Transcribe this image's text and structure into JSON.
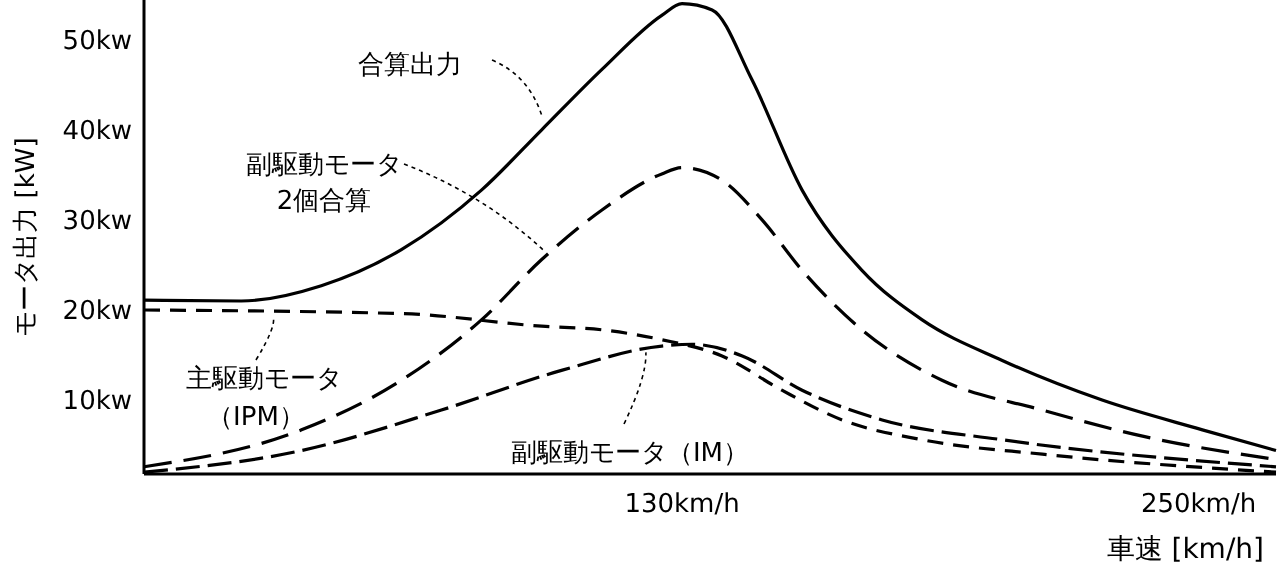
{
  "chart_data": {
    "type": "line",
    "xlabel": "車速 [km/h]",
    "ylabel": "モータ出力 [kW]",
    "xlim": [
      5,
      268
    ],
    "ylim": [
      1.8,
      54.4
    ],
    "xticks": [
      {
        "value": 130,
        "label": "130km/h"
      },
      {
        "value": 250,
        "label": "250km/h"
      }
    ],
    "yticks": [
      {
        "value": 10,
        "label": "10kw"
      },
      {
        "value": 20,
        "label": "20kw"
      },
      {
        "value": 30,
        "label": "30kw"
      },
      {
        "value": 40,
        "label": "40kw"
      },
      {
        "value": 50,
        "label": "50kw"
      }
    ],
    "grid": false,
    "marker": "none",
    "annotations": [
      {
        "text": "合算出力",
        "x": 97.4,
        "y": 41.6
      },
      {
        "text": "副駆動モータ",
        "x": 98.3,
        "y": 26.4
      },
      "2個合算",
      {
        "text": "主駆動モータ",
        "x": 35,
        "y": 19.3
      },
      "（IPM）",
      {
        "text": "副駆動モータ（IM）",
        "x": 121.6,
        "y": 15.3
      }
    ],
    "series": [
      {
        "color": "#000000",
        "line_style": "solid",
        "x": [
          5,
          27.6,
          46.2,
          64.8,
          83.4,
          97.4,
          111.4,
          125.3,
          130,
          137,
          146.2,
          157.9,
          171.8,
          185.8,
          204.4,
          227.6,
          250.9,
          268
        ],
        "values": [
          21.1,
          21,
          22.7,
          26.7,
          33.3,
          40,
          46.7,
          52.7,
          54,
          53.3,
          45.6,
          33.3,
          24.4,
          18.9,
          14.4,
          10,
          6.7,
          4.4
        ]
      },
      {
        "color": "#000000",
        "line_style": "dashed",
        "x": [
          5,
          41.6,
          64.8,
          83.4,
          97.4,
          111.4,
          125.3,
          130,
          139.3,
          148.6,
          157.9,
          171.8,
          190.4,
          213.7,
          237,
          268
        ],
        "values": [
          2.6,
          6.7,
          12.2,
          18.9,
          25.6,
          31.1,
          35.1,
          35.8,
          34.4,
          30,
          24.4,
          17.8,
          12.2,
          8.9,
          6,
          3.4
        ]
      },
      {
        "color": "#000000",
        "line_style": "dashed",
        "x": [
          5,
          64.8,
          97.4,
          111.4,
          125.3,
          139.3,
          153.2,
          167.2,
          185.8,
          213.7,
          268
        ],
        "values": [
          20,
          19.6,
          18.2,
          17.8,
          16.7,
          14.9,
          11.1,
          7.8,
          5.6,
          4,
          2
        ]
      },
      {
        "color": "#000000",
        "line_style": "dashed",
        "x": [
          5,
          41.6,
          74.1,
          102,
          125.3,
          132.3,
          144,
          157.9,
          176.5,
          204.4,
          268
        ],
        "values": [
          2,
          4.4,
          8.9,
          13.3,
          16,
          16.2,
          14.9,
          11.1,
          7.8,
          5.6,
          2.6
        ]
      }
    ]
  }
}
